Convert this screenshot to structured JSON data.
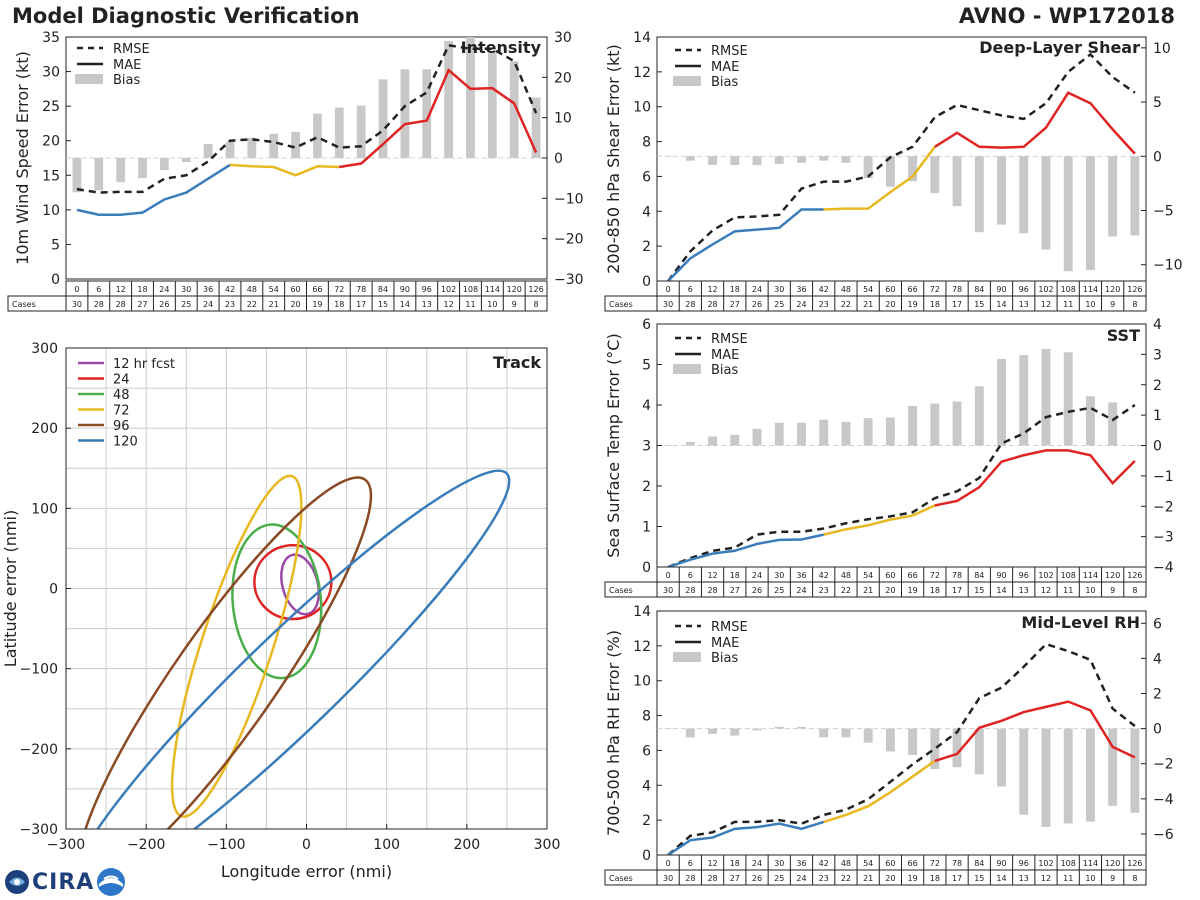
{
  "header": {
    "title": "Model Diagnostic Verification",
    "model_storm": "AVNO - WP172018"
  },
  "logo": {
    "text": "CIRA"
  },
  "colors": {
    "rmse": "#222222",
    "mae_blue": "#3a7dba",
    "mae_yellow": "#e8b820",
    "mae_red": "#e02424",
    "bias": "#c8c8c8",
    "grid": "#cccccc",
    "track_12": "#9b4aa8",
    "track_24": "#e02424",
    "track_48": "#4aae4a",
    "track_72": "#e8b820",
    "track_96": "#8a4a24",
    "track_120": "#3a7dba"
  },
  "hours": [
    "0",
    "6",
    "12",
    "18",
    "24",
    "30",
    "36",
    "42",
    "48",
    "54",
    "60",
    "66",
    "72",
    "78",
    "84",
    "90",
    "96",
    "102",
    "108",
    "114",
    "120",
    "126"
  ],
  "cases": [
    "30",
    "28",
    "28",
    "27",
    "26",
    "25",
    "24",
    "23",
    "22",
    "21",
    "20",
    "19",
    "18",
    "17",
    "15",
    "14",
    "13",
    "12",
    "11",
    "10",
    "9",
    "8"
  ],
  "cases_label": "Cases",
  "legend_labels": [
    "RMSE",
    "MAE",
    "Bias"
  ],
  "chart_data": [
    {
      "id": "intensity",
      "type": "line",
      "title": "Intensity",
      "ylabel": "10m Wind Speed Error (kt)",
      "ylim": [
        0,
        35
      ],
      "yticks": [
        0,
        5,
        10,
        15,
        20,
        25,
        30,
        35
      ],
      "bias_lim": [
        -30,
        30
      ],
      "bias_ticks": [
        -30,
        -20,
        -10,
        0,
        10,
        20,
        30
      ],
      "rmse": [
        13,
        12.5,
        12.6,
        12.6,
        14.5,
        15,
        17,
        20,
        20.2,
        19.8,
        19,
        20.5,
        19,
        19.2,
        21.5,
        25,
        27,
        33.8,
        33.3,
        33.3,
        31.5,
        24
      ],
      "mae": [
        10,
        9.3,
        9.3,
        9.6,
        11.5,
        12.5,
        14.5,
        16.5,
        16.3,
        16.2,
        15,
        16.3,
        16.2,
        16.7,
        19.5,
        22.4,
        22.9,
        30.2,
        27.5,
        27.6,
        25.4,
        18.3
      ],
      "bias": [
        -8.5,
        -8,
        -6,
        -5,
        -3,
        -1,
        3.5,
        4,
        5,
        6,
        6.5,
        11,
        12.5,
        13,
        19.5,
        22,
        22,
        29,
        30,
        26,
        24,
        15
      ]
    },
    {
      "id": "shear",
      "type": "line",
      "title": "Deep-Layer Shear",
      "ylabel": "200-850 hPa Shear Error (kt)",
      "ylim": [
        0,
        14
      ],
      "yticks": [
        0,
        2,
        4,
        6,
        8,
        10,
        12,
        14
      ],
      "bias_lim": [
        -11.5,
        11
      ],
      "bias_ticks": [
        -10,
        -5,
        0,
        5,
        10
      ],
      "rmse": [
        0,
        1.7,
        2.9,
        3.65,
        3.7,
        3.8,
        5.3,
        5.7,
        5.7,
        6,
        7.1,
        7.7,
        9.4,
        10.1,
        9.8,
        9.5,
        9.3,
        10.2,
        12,
        13,
        11.7,
        10.8
      ],
      "mae": [
        0,
        1.3,
        2.1,
        2.85,
        2.95,
        3.05,
        4.1,
        4.1,
        4.15,
        4.15,
        5.1,
        6,
        7.7,
        8.5,
        7.7,
        7.65,
        7.7,
        8.8,
        10.8,
        10.2,
        8.7,
        7.3
      ],
      "bias": [
        0,
        -0.4,
        -0.8,
        -0.8,
        -0.8,
        -0.7,
        -0.6,
        -0.4,
        -0.6,
        -2,
        -2.8,
        -2.3,
        -3.4,
        -4.6,
        -7,
        -6.3,
        -7.1,
        -8.6,
        -10.6,
        -10.5,
        -7.4,
        -7.3
      ]
    },
    {
      "id": "sst",
      "type": "line",
      "title": "SST",
      "ylabel": "Sea Surface Temp Error (°C)",
      "ylim": [
        0,
        6
      ],
      "yticks": [
        0,
        1,
        2,
        3,
        4,
        5,
        6
      ],
      "bias_lim": [
        -4,
        4
      ],
      "bias_ticks": [
        -4,
        -3,
        -2,
        -1,
        0,
        1,
        2,
        3,
        4
      ],
      "rmse": [
        0,
        0.22,
        0.4,
        0.48,
        0.8,
        0.87,
        0.87,
        0.95,
        1.08,
        1.18,
        1.25,
        1.35,
        1.7,
        1.87,
        2.2,
        3.05,
        3.3,
        3.7,
        3.83,
        3.93,
        3.63,
        4
      ],
      "mae": [
        0,
        0.18,
        0.33,
        0.4,
        0.57,
        0.67,
        0.68,
        0.8,
        0.93,
        1.03,
        1.17,
        1.27,
        1.52,
        1.63,
        1.97,
        2.6,
        2.76,
        2.88,
        2.88,
        2.76,
        2.07,
        2.62
      ],
      "bias": [
        0,
        0.12,
        0.3,
        0.35,
        0.55,
        0.75,
        0.75,
        0.85,
        0.78,
        0.9,
        0.92,
        1.3,
        1.38,
        1.45,
        1.95,
        2.85,
        2.98,
        3.18,
        3.07,
        1.62,
        1.42,
        0.01
      ]
    },
    {
      "id": "rh",
      "type": "line",
      "title": "Mid-Level RH",
      "ylabel": "700-500 hPa RH Error (%)",
      "ylim": [
        0,
        14
      ],
      "yticks": [
        0,
        2,
        4,
        6,
        8,
        10,
        12,
        14
      ],
      "bias_lim": [
        -7.2,
        6.7
      ],
      "bias_ticks": [
        -6,
        -4,
        -2,
        0,
        2,
        4,
        6
      ],
      "rmse": [
        0,
        1.1,
        1.3,
        1.9,
        1.9,
        2,
        1.8,
        2.3,
        2.6,
        3.2,
        4.2,
        5.2,
        6.1,
        7.05,
        9,
        9.6,
        10.8,
        12.1,
        11.7,
        11.2,
        8.4,
        7.4
      ],
      "mae": [
        0,
        0.85,
        1,
        1.5,
        1.6,
        1.8,
        1.5,
        1.9,
        2.3,
        2.8,
        3.6,
        4.5,
        5.4,
        5.8,
        7.3,
        7.7,
        8.2,
        8.5,
        8.8,
        8.3,
        6.2,
        5.6
      ],
      "bias": [
        0,
        -0.5,
        -0.3,
        -0.4,
        -0.1,
        0.1,
        0.1,
        -0.5,
        -0.5,
        -0.8,
        -1.3,
        -1.5,
        -2.3,
        -2.2,
        -2.6,
        -3.3,
        -4.9,
        -5.6,
        -5.4,
        -5.3,
        -4.4,
        -4.8
      ]
    },
    {
      "id": "track",
      "type": "scatter",
      "title": "Track",
      "xlabel": "Longitude error (nmi)",
      "ylabel": "Latitude error (nmi)",
      "xlim": [
        -300,
        300
      ],
      "ylim": [
        -300,
        300
      ],
      "xticks": [
        -300,
        -200,
        -100,
        0,
        100,
        200,
        300
      ],
      "yticks": [
        -300,
        -200,
        -100,
        0,
        100,
        200,
        300
      ],
      "ellipses": [
        {
          "label": "12 hr fcst",
          "cx": -8,
          "cy": 5,
          "a": 38,
          "b": 22,
          "angle": 105
        },
        {
          "label": "24",
          "cx": -17,
          "cy": 8,
          "a": 48,
          "b": 46,
          "angle": 0
        },
        {
          "label": "48",
          "cx": -37,
          "cy": -16,
          "a": 96,
          "b": 55,
          "angle": 95
        },
        {
          "label": "72",
          "cx": -87,
          "cy": -72,
          "a": 223,
          "b": 44,
          "angle": 72
        },
        {
          "label": "96",
          "cx": -102,
          "cy": -114,
          "a": 305,
          "b": 63,
          "angle": 55
        },
        {
          "label": "120",
          "cx": -20,
          "cy": -117,
          "a": 375,
          "b": 59,
          "angle": 44
        }
      ]
    }
  ]
}
